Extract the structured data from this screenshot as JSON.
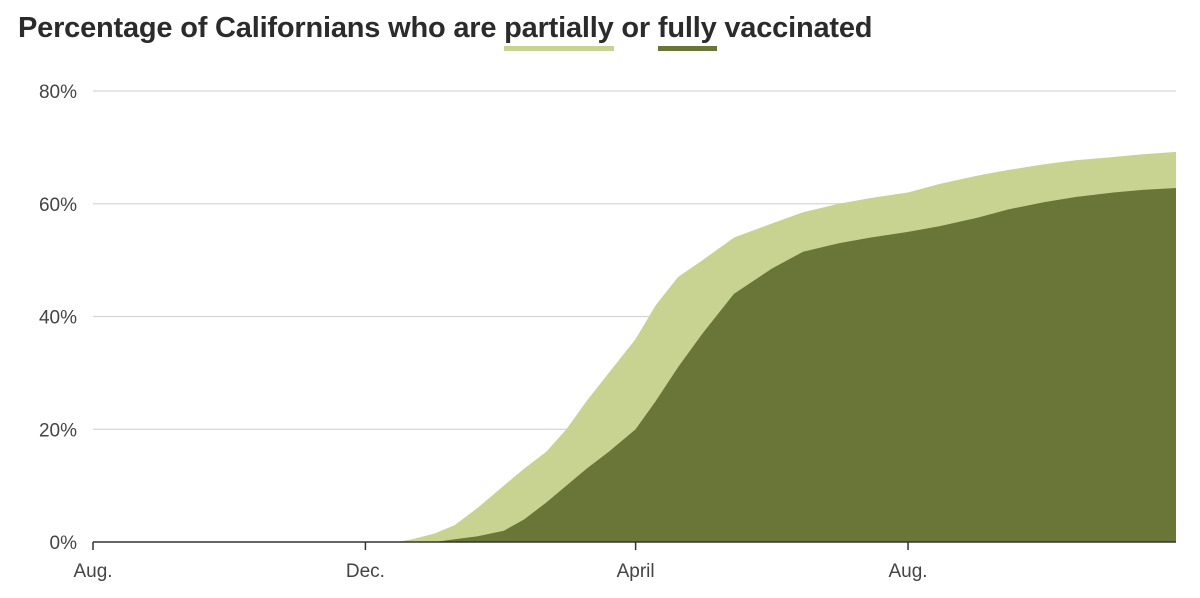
{
  "title": {
    "prefix": "Percentage of Californians who are",
    "partial_word": "partially",
    "middle": "or",
    "full_word": "fully",
    "suffix": "vaccinated"
  },
  "colors": {
    "partial": "#c8d392",
    "full": "#6a7637",
    "grid": "#d6d6d6",
    "axis": "#333333",
    "text": "#2b2b2b"
  },
  "chart_data": {
    "type": "area",
    "title": "Percentage of Californians who are partially or fully vaccinated",
    "xlabel": "",
    "ylabel": "",
    "ylim": [
      0,
      80
    ],
    "yticks": [
      {
        "value": 0,
        "label": "0%"
      },
      {
        "value": 20,
        "label": "20%"
      },
      {
        "value": 40,
        "label": "40%"
      },
      {
        "value": 60,
        "label": "60%"
      },
      {
        "value": 80,
        "label": "80%"
      }
    ],
    "xlim": [
      "2020-08-01",
      "2021-11-29"
    ],
    "xticks": [
      {
        "date": "2020-08-01",
        "label": "Aug."
      },
      {
        "date": "2020-12-01",
        "label": "Dec."
      },
      {
        "date": "2021-04-01",
        "label": "April"
      },
      {
        "date": "2021-08-01",
        "label": "Aug."
      }
    ],
    "grid": true,
    "series": [
      {
        "name": "partially",
        "points": [
          [
            "2020-12-15",
            0
          ],
          [
            "2020-12-22",
            0.5
          ],
          [
            "2021-01-01",
            1.5
          ],
          [
            "2021-01-10",
            3
          ],
          [
            "2021-01-20",
            6
          ],
          [
            "2021-02-01",
            10
          ],
          [
            "2021-02-10",
            13
          ],
          [
            "2021-02-20",
            16
          ],
          [
            "2021-03-01",
            20
          ],
          [
            "2021-03-10",
            25
          ],
          [
            "2021-03-20",
            30
          ],
          [
            "2021-04-01",
            36
          ],
          [
            "2021-04-10",
            42
          ],
          [
            "2021-04-20",
            47
          ],
          [
            "2021-05-01",
            50
          ],
          [
            "2021-05-15",
            54
          ],
          [
            "2021-06-01",
            56.5
          ],
          [
            "2021-06-15",
            58.5
          ],
          [
            "2021-07-01",
            60
          ],
          [
            "2021-07-15",
            61
          ],
          [
            "2021-08-01",
            62
          ],
          [
            "2021-08-15",
            63.5
          ],
          [
            "2021-09-01",
            65
          ],
          [
            "2021-09-15",
            66
          ],
          [
            "2021-10-01",
            67
          ],
          [
            "2021-10-15",
            67.7
          ],
          [
            "2021-11-01",
            68.3
          ],
          [
            "2021-11-15",
            68.8
          ],
          [
            "2021-11-29",
            69.2
          ]
        ]
      },
      {
        "name": "fully",
        "points": [
          [
            "2021-01-01",
            0
          ],
          [
            "2021-01-10",
            0.5
          ],
          [
            "2021-01-20",
            1
          ],
          [
            "2021-02-01",
            2
          ],
          [
            "2021-02-10",
            4
          ],
          [
            "2021-02-20",
            7
          ],
          [
            "2021-03-01",
            10
          ],
          [
            "2021-03-10",
            13
          ],
          [
            "2021-03-20",
            16
          ],
          [
            "2021-04-01",
            20
          ],
          [
            "2021-04-10",
            25
          ],
          [
            "2021-04-20",
            31
          ],
          [
            "2021-05-01",
            37
          ],
          [
            "2021-05-15",
            44
          ],
          [
            "2021-06-01",
            48.5
          ],
          [
            "2021-06-15",
            51.5
          ],
          [
            "2021-07-01",
            53
          ],
          [
            "2021-07-15",
            54
          ],
          [
            "2021-08-01",
            55
          ],
          [
            "2021-08-15",
            56
          ],
          [
            "2021-09-01",
            57.5
          ],
          [
            "2021-09-15",
            59
          ],
          [
            "2021-10-01",
            60.3
          ],
          [
            "2021-10-15",
            61.2
          ],
          [
            "2021-11-01",
            62
          ],
          [
            "2021-11-15",
            62.5
          ],
          [
            "2021-11-29",
            62.8
          ]
        ]
      }
    ]
  }
}
